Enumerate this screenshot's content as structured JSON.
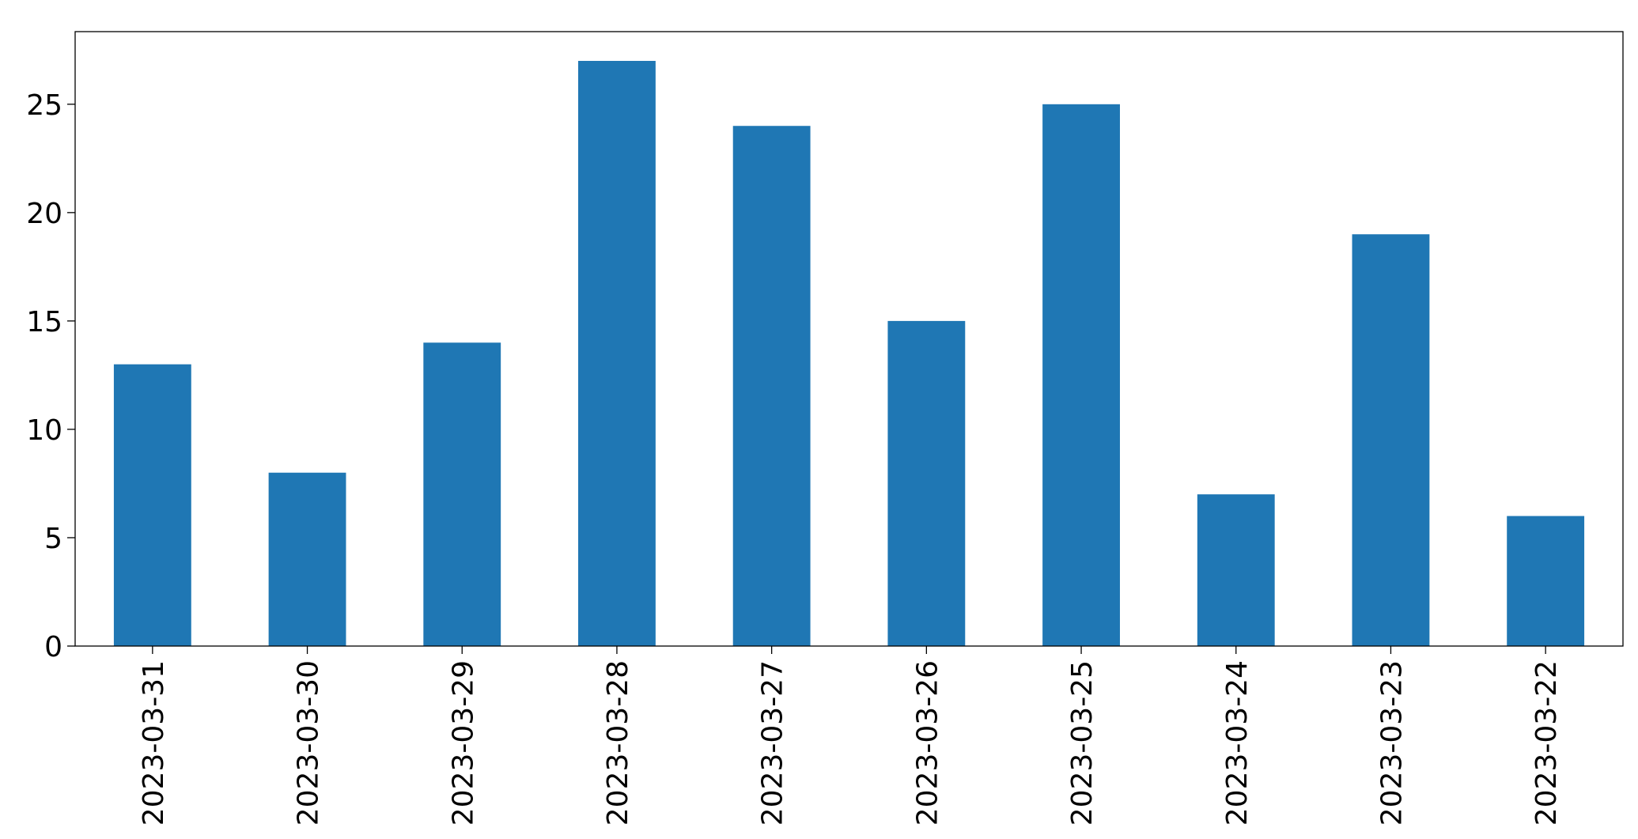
{
  "chart_data": {
    "type": "bar",
    "categories": [
      "2023-03-31",
      "2023-03-30",
      "2023-03-29",
      "2023-03-28",
      "2023-03-27",
      "2023-03-26",
      "2023-03-25",
      "2023-03-24",
      "2023-03-23",
      "2023-03-22"
    ],
    "values": [
      13,
      8,
      14,
      27,
      24,
      15,
      25,
      7,
      19,
      6
    ],
    "color": "#1f77b4",
    "ylim": [
      0,
      28.35
    ],
    "yticks": [
      0,
      5,
      10,
      15,
      20,
      25
    ],
    "grid": false
  }
}
